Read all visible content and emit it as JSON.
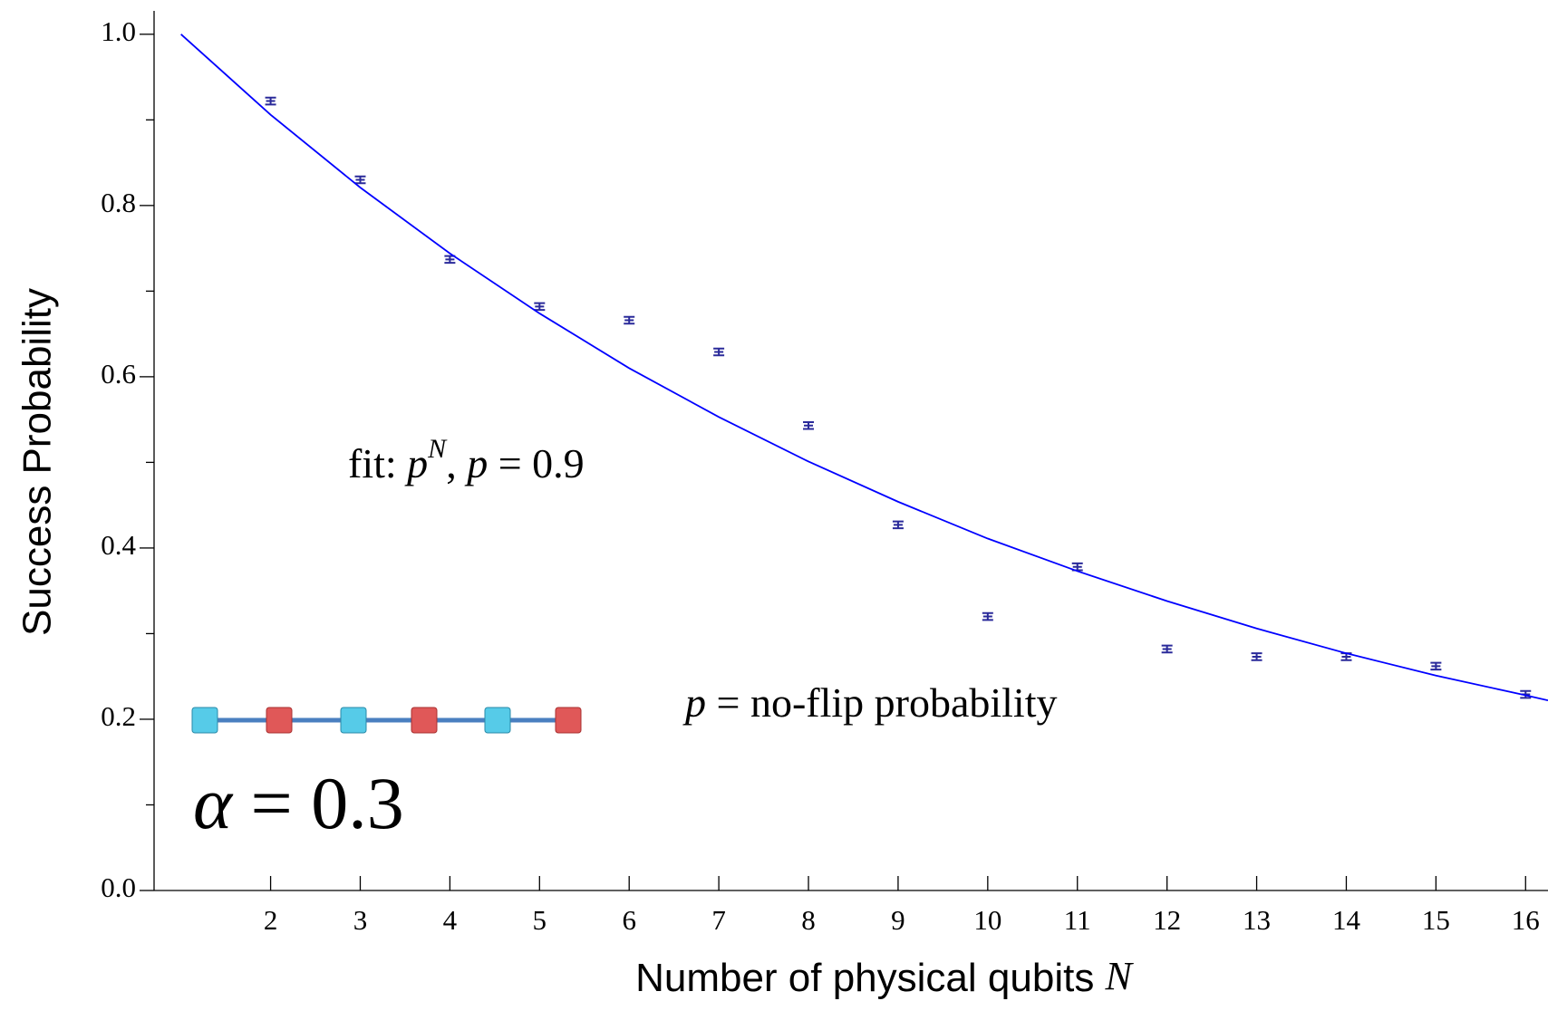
{
  "chart_data": {
    "type": "scatter",
    "xlabel": [
      "Number of physical qubits ",
      "N"
    ],
    "ylabel": "Success Probability",
    "xlim": [
      0.7,
      16.25
    ],
    "ylim": [
      0,
      1.04
    ],
    "xticks": [
      2,
      3,
      4,
      5,
      6,
      7,
      8,
      9,
      10,
      11,
      12,
      13,
      14,
      15,
      16
    ],
    "yticks": [
      {
        "value": 0,
        "label": "0.0"
      },
      0.2,
      0.4,
      0.6,
      0.8,
      {
        "value": 1,
        "label": "1.0"
      }
    ],
    "yminorticks": [
      0.1,
      0.3,
      0.5,
      0.7,
      0.9
    ],
    "series": [
      {
        "color": "#2a2a9a",
        "x": [
          2,
          3,
          4,
          5,
          6,
          7,
          8,
          9,
          10,
          11,
          12,
          13,
          14,
          15,
          16
        ],
        "values": [
          0.922,
          0.83,
          0.737,
          0.682,
          0.666,
          0.629,
          0.543,
          0.427,
          0.32,
          0.378,
          0.282,
          0.273,
          0.273,
          0.262,
          0.229
        ],
        "errors": [
          0.004,
          0.004,
          0.004,
          0.004,
          0.004,
          0.004,
          0.004,
          0.004,
          0.004,
          0.004,
          0.004,
          0.004,
          0.004,
          0.004,
          0.004
        ]
      },
      {
        "type": "line",
        "color": "#0000ff",
        "x": [
          1,
          2,
          3,
          4,
          5,
          6,
          7,
          8,
          9,
          10,
          11,
          12,
          13,
          14,
          15,
          16,
          16.25
        ],
        "values": [
          1,
          0.906,
          0.821,
          0.744,
          0.674,
          0.61,
          0.553,
          0.501,
          0.454,
          0.411,
          0.373,
          0.338,
          0.306,
          0.277,
          0.251,
          0.228,
          0.222
        ]
      }
    ],
    "annotations": {
      "fit": [
        "fit: ",
        "p",
        "N",
        ", ",
        "p",
        " = 0.9"
      ],
      "definition": [
        "p",
        " = no-flip probability"
      ],
      "alpha": [
        "α",
        " = 0.3"
      ]
    }
  }
}
